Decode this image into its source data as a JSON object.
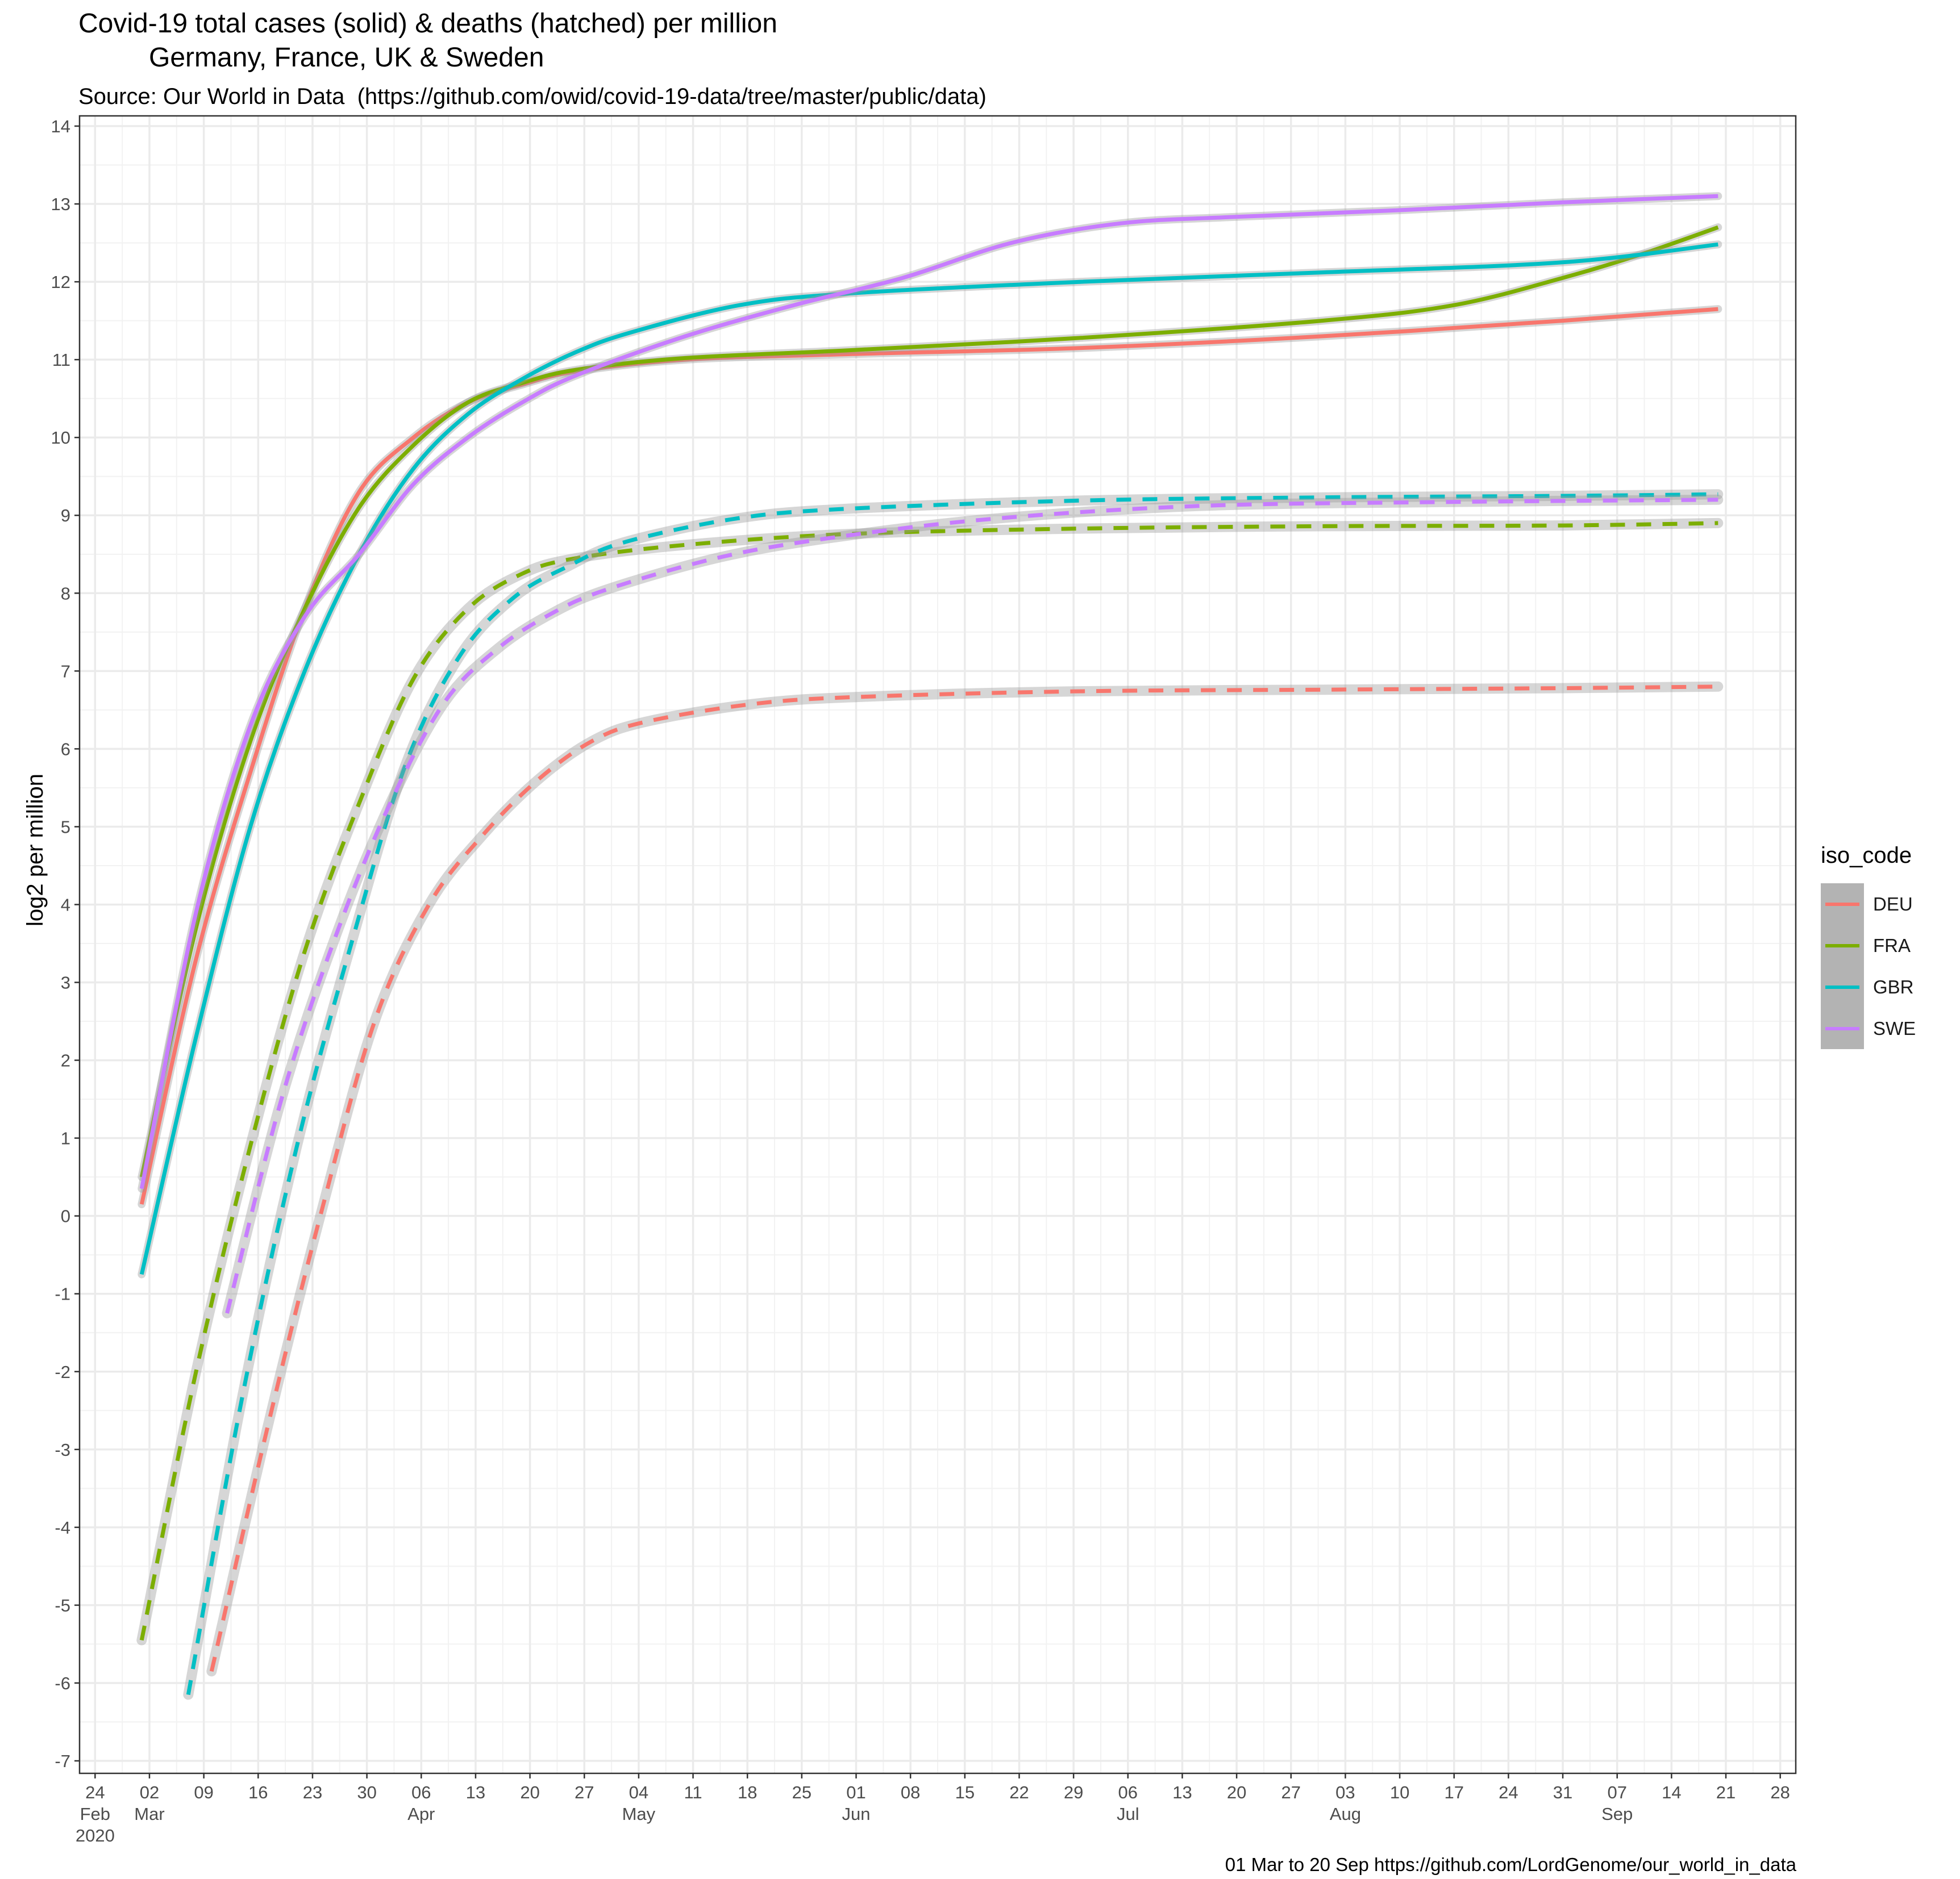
{
  "title_line1": "Covid-19 total cases (solid) & deaths (hatched) per million",
  "title_line2": "Germany, France, UK & Sweden",
  "subtitle": "Source: Our World in Data  (https://github.com/owid/covid-19-data/tree/master/public/data)",
  "caption": "01 Mar to 20 Sep https://github.com/LordGenome/our_world_in_data",
  "chart_data": {
    "type": "line",
    "ylabel": "log2 per million",
    "xlabel": "",
    "ylim": [
      -7,
      14
    ],
    "xlim": [
      "2020-02-22",
      "2020-09-30"
    ],
    "y_ticks": [
      "-7",
      "-6",
      "-5",
      "-4",
      "-3",
      "-2",
      "-1",
      "0",
      "1",
      "2",
      "3",
      "4",
      "5",
      "6",
      "7",
      "8",
      "9",
      "10",
      "11",
      "12",
      "13",
      "14"
    ],
    "x_ticks": [
      {
        "date": "2020-02-24",
        "day": "24",
        "month": "Feb",
        "year": "2020"
      },
      {
        "date": "2020-03-02",
        "day": "02",
        "month": "Mar"
      },
      {
        "date": "2020-03-09",
        "day": "09"
      },
      {
        "date": "2020-03-16",
        "day": "16"
      },
      {
        "date": "2020-03-23",
        "day": "23"
      },
      {
        "date": "2020-03-30",
        "day": "30"
      },
      {
        "date": "2020-04-06",
        "day": "06",
        "month": "Apr"
      },
      {
        "date": "2020-04-13",
        "day": "13"
      },
      {
        "date": "2020-04-20",
        "day": "20"
      },
      {
        "date": "2020-04-27",
        "day": "27"
      },
      {
        "date": "2020-05-04",
        "day": "04",
        "month": "May"
      },
      {
        "date": "2020-05-11",
        "day": "11"
      },
      {
        "date": "2020-05-18",
        "day": "18"
      },
      {
        "date": "2020-05-25",
        "day": "25"
      },
      {
        "date": "2020-06-01",
        "day": "01",
        "month": "Jun"
      },
      {
        "date": "2020-06-08",
        "day": "08"
      },
      {
        "date": "2020-06-15",
        "day": "15"
      },
      {
        "date": "2020-06-22",
        "day": "22"
      },
      {
        "date": "2020-06-29",
        "day": "29"
      },
      {
        "date": "2020-07-06",
        "day": "06",
        "month": "Jul"
      },
      {
        "date": "2020-07-13",
        "day": "13"
      },
      {
        "date": "2020-07-20",
        "day": "20"
      },
      {
        "date": "2020-07-27",
        "day": "27"
      },
      {
        "date": "2020-08-03",
        "day": "03",
        "month": "Aug"
      },
      {
        "date": "2020-08-10",
        "day": "10"
      },
      {
        "date": "2020-08-17",
        "day": "17"
      },
      {
        "date": "2020-08-24",
        "day": "24"
      },
      {
        "date": "2020-08-31",
        "day": "31"
      },
      {
        "date": "2020-09-07",
        "day": "07",
        "month": "Sep"
      },
      {
        "date": "2020-09-14",
        "day": "14"
      },
      {
        "date": "2020-09-21",
        "day": "21"
      },
      {
        "date": "2020-09-28",
        "day": "28"
      }
    ],
    "grid": true,
    "legend": {
      "title": "iso_code",
      "position": "right"
    },
    "series": [
      {
        "name": "DEU",
        "metric": "cases",
        "linestyle": "solid",
        "color": "#F8766D",
        "x": [
          "2020-03-01",
          "2020-03-08",
          "2020-03-15",
          "2020-03-22",
          "2020-03-29",
          "2020-04-05",
          "2020-04-12",
          "2020-04-19",
          "2020-04-26",
          "2020-05-10",
          "2020-05-31",
          "2020-06-30",
          "2020-07-31",
          "2020-08-31",
          "2020-09-20"
        ],
        "y": [
          0.15,
          3.3,
          5.7,
          7.8,
          9.3,
          10.0,
          10.45,
          10.68,
          10.85,
          11.0,
          11.07,
          11.15,
          11.3,
          11.5,
          11.65
        ]
      },
      {
        "name": "FRA",
        "metric": "cases",
        "linestyle": "solid",
        "color": "#7CAE00",
        "x": [
          "2020-03-01",
          "2020-03-08",
          "2020-03-15",
          "2020-03-22",
          "2020-03-29",
          "2020-04-05",
          "2020-04-12",
          "2020-04-19",
          "2020-04-26",
          "2020-05-10",
          "2020-05-31",
          "2020-06-30",
          "2020-07-31",
          "2020-08-17",
          "2020-08-31",
          "2020-09-10",
          "2020-09-20"
        ],
        "y": [
          0.5,
          3.7,
          6.1,
          7.8,
          9.1,
          9.9,
          10.45,
          10.7,
          10.87,
          11.02,
          11.12,
          11.28,
          11.5,
          11.7,
          12.05,
          12.35,
          12.7
        ]
      },
      {
        "name": "GBR",
        "metric": "cases",
        "linestyle": "solid",
        "color": "#00BFC4",
        "x": [
          "2020-03-01",
          "2020-03-08",
          "2020-03-15",
          "2020-03-22",
          "2020-03-29",
          "2020-04-05",
          "2020-04-12",
          "2020-04-19",
          "2020-04-26",
          "2020-05-03",
          "2020-05-17",
          "2020-05-31",
          "2020-06-30",
          "2020-07-31",
          "2020-08-31",
          "2020-09-20"
        ],
        "y": [
          -0.75,
          2.3,
          5.0,
          7.0,
          8.5,
          9.6,
          10.3,
          10.75,
          11.1,
          11.35,
          11.7,
          11.85,
          12.0,
          12.12,
          12.25,
          12.48
        ]
      },
      {
        "name": "SWE",
        "metric": "cases",
        "linestyle": "solid",
        "color": "#C77CFF",
        "x": [
          "2020-03-01",
          "2020-03-08",
          "2020-03-15",
          "2020-03-22",
          "2020-03-29",
          "2020-04-05",
          "2020-04-12",
          "2020-04-19",
          "2020-04-26",
          "2020-05-10",
          "2020-05-24",
          "2020-06-07",
          "2020-06-21",
          "2020-07-05",
          "2020-07-19",
          "2020-08-10",
          "2020-08-31",
          "2020-09-20"
        ],
        "y": [
          0.35,
          3.9,
          6.3,
          7.7,
          8.5,
          9.4,
          10.0,
          10.45,
          10.8,
          11.3,
          11.7,
          12.05,
          12.5,
          12.75,
          12.83,
          12.92,
          13.02,
          13.1
        ]
      },
      {
        "name": "DEU",
        "metric": "deaths",
        "linestyle": "dashed",
        "color": "#F8766D",
        "x": [
          "2020-03-10",
          "2020-03-17",
          "2020-03-24",
          "2020-03-31",
          "2020-04-07",
          "2020-04-14",
          "2020-04-21",
          "2020-04-28",
          "2020-05-05",
          "2020-05-19",
          "2020-06-02",
          "2020-06-30",
          "2020-07-31",
          "2020-08-31",
          "2020-09-20"
        ],
        "y": [
          -5.85,
          -2.8,
          0.0,
          2.5,
          4.0,
          4.9,
          5.6,
          6.1,
          6.35,
          6.58,
          6.67,
          6.74,
          6.76,
          6.78,
          6.8
        ]
      },
      {
        "name": "FRA",
        "metric": "deaths",
        "linestyle": "dashed",
        "color": "#7CAE00",
        "x": [
          "2020-03-01",
          "2020-03-08",
          "2020-03-15",
          "2020-03-22",
          "2020-03-29",
          "2020-04-05",
          "2020-04-12",
          "2020-04-19",
          "2020-04-26",
          "2020-05-10",
          "2020-05-31",
          "2020-06-30",
          "2020-07-31",
          "2020-08-31",
          "2020-09-20"
        ],
        "y": [
          -5.45,
          -2.0,
          0.9,
          3.4,
          5.3,
          6.9,
          7.8,
          8.25,
          8.45,
          8.62,
          8.76,
          8.83,
          8.86,
          8.87,
          8.9
        ]
      },
      {
        "name": "GBR",
        "metric": "deaths",
        "linestyle": "dashed",
        "color": "#00BFC4",
        "x": [
          "2020-03-07",
          "2020-03-14",
          "2020-03-21",
          "2020-03-28",
          "2020-04-04",
          "2020-04-11",
          "2020-04-18",
          "2020-04-25",
          "2020-05-02",
          "2020-05-16",
          "2020-05-30",
          "2020-06-30",
          "2020-07-31",
          "2020-08-31",
          "2020-09-20"
        ],
        "y": [
          -6.15,
          -2.3,
          0.9,
          3.5,
          5.8,
          7.2,
          7.95,
          8.35,
          8.65,
          8.95,
          9.08,
          9.19,
          9.23,
          9.25,
          9.27
        ]
      },
      {
        "name": "SWE",
        "metric": "deaths",
        "linestyle": "dashed",
        "color": "#C77CFF",
        "x": [
          "2020-03-12",
          "2020-03-19",
          "2020-03-26",
          "2020-04-02",
          "2020-04-09",
          "2020-04-16",
          "2020-04-23",
          "2020-04-30",
          "2020-05-14",
          "2020-05-28",
          "2020-06-18",
          "2020-07-15",
          "2020-08-15",
          "2020-09-20"
        ],
        "y": [
          -1.25,
          1.5,
          3.6,
          5.3,
          6.6,
          7.3,
          7.75,
          8.05,
          8.45,
          8.7,
          8.95,
          9.12,
          9.17,
          9.2
        ]
      }
    ]
  }
}
